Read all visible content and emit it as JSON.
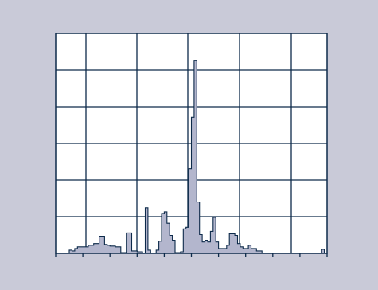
{
  "colors": {
    "panel_background": "#c9cad8",
    "plot_background": "#ffffff",
    "grid_line": "#0d2a4a",
    "fill": "#b3b6cd",
    "stroke": "#0d2a4a"
  },
  "chart_data": {
    "type": "area",
    "step": true,
    "title": "",
    "xlabel": "",
    "ylabel": "",
    "tick_labels_shown": false,
    "grid": true,
    "x": [
      0,
      3,
      5,
      6,
      7,
      8,
      10,
      12,
      14,
      16,
      18,
      19,
      20,
      22,
      24,
      26,
      28,
      30,
      32,
      33,
      34,
      35,
      36,
      37,
      38,
      39,
      40,
      41,
      42,
      43,
      44,
      45,
      46,
      47,
      48,
      49,
      50,
      51,
      52,
      53,
      54,
      55,
      56,
      57,
      58,
      59,
      60,
      61,
      62,
      63,
      64,
      65,
      66,
      67,
      68,
      69,
      70,
      71,
      72,
      73,
      74,
      76,
      78,
      80,
      82,
      84,
      86,
      88,
      90,
      92,
      94,
      96,
      97,
      98,
      99,
      100
    ],
    "values": [
      0,
      0,
      0.2,
      0.15,
      0.3,
      0.4,
      0.4,
      0.5,
      0.6,
      1.05,
      0.55,
      0.5,
      0.45,
      0.4,
      0.05,
      1.25,
      0.15,
      0.1,
      0,
      2.8,
      0.2,
      0,
      0,
      0.2,
      0.75,
      2.45,
      2.55,
      1.85,
      1.1,
      0.8,
      0.05,
      0.05,
      0.1,
      1.5,
      1.6,
      5.2,
      8.35,
      11.85,
      3.15,
      1.15,
      0.7,
      0.8,
      0.7,
      1.35,
      2.2,
      0.7,
      0.3,
      0.3,
      0.3,
      0.5,
      1.2,
      1.2,
      1.1,
      0.6,
      0.4,
      0.3,
      0.3,
      0.5,
      0.3,
      0.3,
      0.15,
      0,
      0,
      0,
      0,
      0,
      0,
      0,
      0,
      0,
      0,
      0,
      0,
      0.25,
      0,
      0
    ],
    "xlim": [
      0,
      100
    ],
    "ylim": [
      0,
      13.5
    ]
  }
}
